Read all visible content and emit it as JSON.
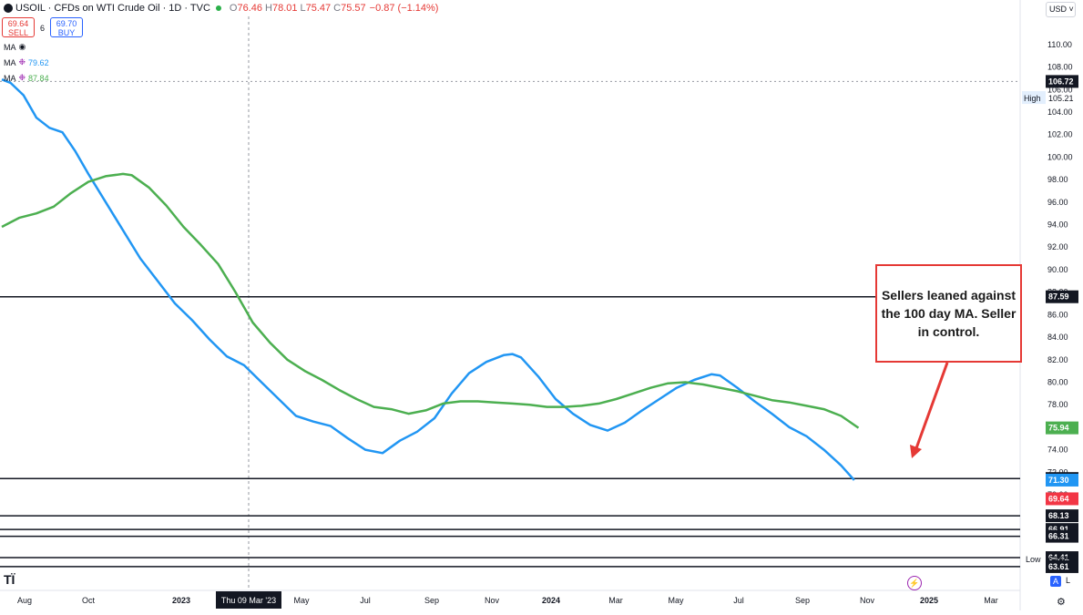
{
  "header": {
    "symbol": "USOIL · CFDs on WTI Crude Oil · 1D · TVC",
    "open_label": "O",
    "open": "76.46",
    "high_label": "H",
    "high": "78.01",
    "low_label": "L",
    "low": "75.47",
    "close_label": "C",
    "close": "75.57",
    "change": "−0.87 (−1.14%)",
    "currency": "USD"
  },
  "trade": {
    "sell_price": "69.64",
    "sell_label": "SELL",
    "spread": "6",
    "buy_price": "69.70",
    "buy_label": "BUY"
  },
  "indicators": [
    {
      "label": "MA",
      "value": "",
      "color": "#787b86"
    },
    {
      "label": "MA",
      "value": "79.62",
      "color": "#2196f3"
    },
    {
      "label": "MA",
      "value": "87.84",
      "color": "#4caf50"
    }
  ],
  "annotation": {
    "text": "Sellers leaned against the 100 day MA.   Seller in control."
  },
  "crosshair_label": "Thu 09 Mar '23",
  "chart_data": {
    "type": "line",
    "title": "",
    "xlabel": "",
    "ylabel": "",
    "ylim": [
      61.5,
      112.5
    ],
    "x_ticks": [
      "Aug",
      "Oct",
      "2023",
      "Thu 09 Mar '23",
      "May",
      "Jul",
      "Sep",
      "Nov",
      "2024",
      "Mar",
      "May",
      "Jul",
      "Sep",
      "Nov",
      "2025",
      "Mar"
    ],
    "y_ticks": [
      64.0,
      66.0,
      68.0,
      70.0,
      72.0,
      74.0,
      76.0,
      78.0,
      80.0,
      82.0,
      84.0,
      86.0,
      88.0,
      90.0,
      92.0,
      94.0,
      96.0,
      98.0,
      100.0,
      102.0,
      104.0,
      106.0,
      108.0,
      110.0
    ],
    "price_labels": [
      {
        "value": "106.72",
        "kind": "dark"
      },
      {
        "value": "105.21",
        "kind": "plain",
        "prefix": "High"
      },
      {
        "value": "87.59",
        "kind": "dark"
      },
      {
        "value": "75.94",
        "kind": "green"
      },
      {
        "value": "71.44",
        "kind": "dark"
      },
      {
        "value": "71.30",
        "kind": "blue"
      },
      {
        "value": "69.64",
        "kind": "red"
      },
      {
        "value": "68.13",
        "kind": "dark"
      },
      {
        "value": "66.91",
        "kind": "dark"
      },
      {
        "value": "66.31",
        "kind": "dark"
      },
      {
        "value": "64.41",
        "kind": "dark"
      },
      {
        "value": "63.61",
        "kind": "dark"
      },
      {
        "value": "63.61",
        "kind": "plain",
        "prefix": "Low"
      }
    ],
    "horizontal_lines": [
      87.59,
      71.44,
      68.13,
      66.91,
      66.31,
      64.41,
      63.61
    ],
    "dashed_level": 106.72,
    "series": [
      {
        "name": "",
        "color": "#2196f3",
        "points": [
          [
            0,
            106.9
          ],
          [
            2,
            106.6
          ],
          [
            5,
            105.5
          ],
          [
            8,
            103.5
          ],
          [
            11,
            102.6
          ],
          [
            14,
            102.2
          ],
          [
            17,
            100.5
          ],
          [
            20,
            98.5
          ],
          [
            24,
            96.0
          ],
          [
            28,
            93.5
          ],
          [
            32,
            91.0
          ],
          [
            36,
            89.0
          ],
          [
            40,
            87.0
          ],
          [
            44,
            85.5
          ],
          [
            48,
            83.8
          ],
          [
            52,
            82.3
          ],
          [
            56,
            81.5
          ],
          [
            60,
            80.0
          ],
          [
            64,
            78.5
          ],
          [
            68,
            77.0
          ],
          [
            72,
            76.5
          ],
          [
            76,
            76.1
          ],
          [
            80,
            75.0
          ],
          [
            84,
            74.0
          ],
          [
            88,
            73.7
          ],
          [
            92,
            74.8
          ],
          [
            96,
            75.6
          ],
          [
            100,
            76.8
          ],
          [
            104,
            79.0
          ],
          [
            108,
            80.8
          ],
          [
            112,
            81.8
          ],
          [
            116,
            82.4
          ],
          [
            118,
            82.5
          ],
          [
            120,
            82.2
          ],
          [
            124,
            80.5
          ],
          [
            128,
            78.5
          ],
          [
            132,
            77.2
          ],
          [
            136,
            76.2
          ],
          [
            140,
            75.7
          ],
          [
            144,
            76.4
          ],
          [
            148,
            77.5
          ],
          [
            152,
            78.5
          ],
          [
            156,
            79.5
          ],
          [
            160,
            80.2
          ],
          [
            164,
            80.7
          ],
          [
            166,
            80.6
          ],
          [
            170,
            79.5
          ],
          [
            174,
            78.3
          ],
          [
            178,
            77.2
          ],
          [
            182,
            76.0
          ],
          [
            186,
            75.2
          ],
          [
            190,
            74.0
          ],
          [
            194,
            72.6
          ],
          [
            197,
            71.3
          ]
        ]
      },
      {
        "name": "",
        "color": "#4caf50",
        "points": [
          [
            0,
            93.8
          ],
          [
            4,
            94.6
          ],
          [
            8,
            95.0
          ],
          [
            12,
            95.6
          ],
          [
            16,
            96.8
          ],
          [
            20,
            97.8
          ],
          [
            24,
            98.3
          ],
          [
            28,
            98.5
          ],
          [
            30,
            98.4
          ],
          [
            34,
            97.3
          ],
          [
            38,
            95.7
          ],
          [
            42,
            93.8
          ],
          [
            46,
            92.2
          ],
          [
            50,
            90.5
          ],
          [
            54,
            88.0
          ],
          [
            58,
            85.3
          ],
          [
            62,
            83.5
          ],
          [
            66,
            82.0
          ],
          [
            70,
            81.0
          ],
          [
            74,
            80.2
          ],
          [
            78,
            79.3
          ],
          [
            82,
            78.5
          ],
          [
            86,
            77.8
          ],
          [
            90,
            77.6
          ],
          [
            94,
            77.2
          ],
          [
            98,
            77.5
          ],
          [
            102,
            78.1
          ],
          [
            106,
            78.3
          ],
          [
            110,
            78.3
          ],
          [
            114,
            78.2
          ],
          [
            118,
            78.1
          ],
          [
            122,
            78.0
          ],
          [
            126,
            77.8
          ],
          [
            130,
            77.8
          ],
          [
            134,
            77.9
          ],
          [
            138,
            78.1
          ],
          [
            142,
            78.5
          ],
          [
            146,
            79.0
          ],
          [
            150,
            79.5
          ],
          [
            154,
            79.9
          ],
          [
            158,
            80.0
          ],
          [
            162,
            79.8
          ],
          [
            166,
            79.5
          ],
          [
            170,
            79.2
          ],
          [
            174,
            78.8
          ],
          [
            178,
            78.4
          ],
          [
            182,
            78.2
          ],
          [
            186,
            77.9
          ],
          [
            190,
            77.6
          ],
          [
            194,
            77.0
          ],
          [
            198,
            75.94
          ]
        ]
      }
    ]
  }
}
